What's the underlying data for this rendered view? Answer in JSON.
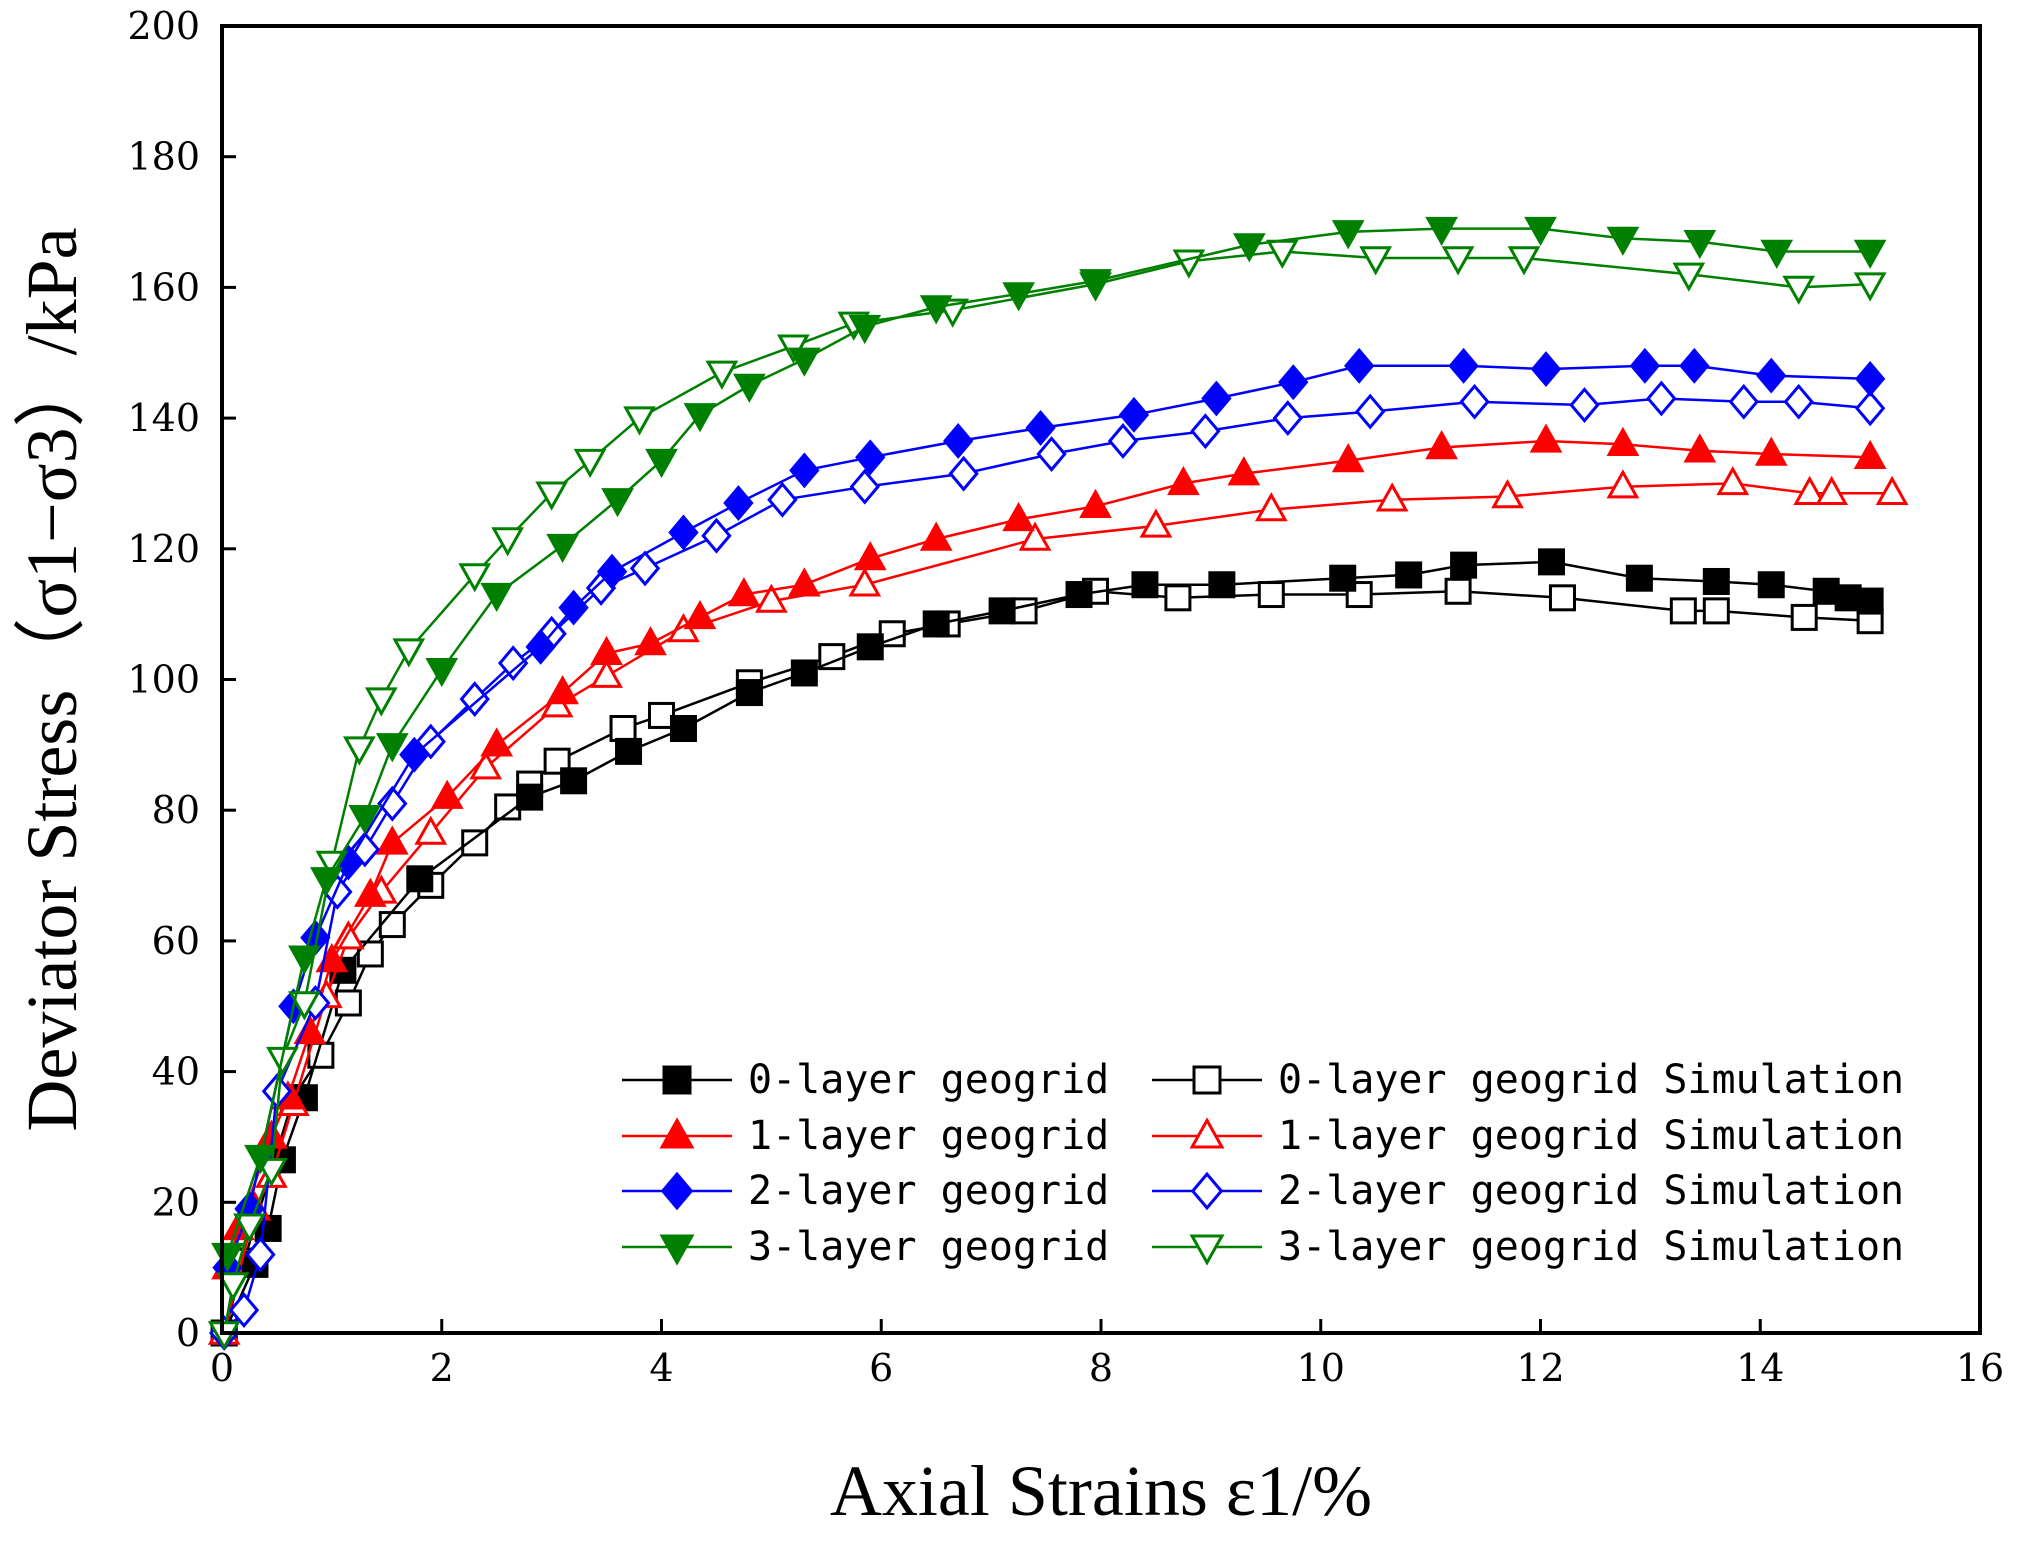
{
  "chart_data": {
    "type": "line",
    "title": "",
    "xlabel": "Axial Strains  ε1/%",
    "ylabel": "Deviator Stress（σ1−σ3）/kPa",
    "xlim": [
      0,
      16
    ],
    "ylim": [
      0,
      200
    ],
    "xticks": [
      0,
      2,
      4,
      6,
      8,
      10,
      12,
      14,
      16
    ],
    "yticks": [
      0,
      20,
      40,
      60,
      80,
      100,
      120,
      140,
      160,
      180,
      200
    ],
    "legend_position": "bottom-right",
    "series": [
      {
        "name": "0-layer geogrid",
        "color": "#000000",
        "marker": "square",
        "filled": true,
        "x": [
          0.02,
          0.3,
          0.42,
          0.55,
          0.75,
          1.1,
          1.8,
          2.8,
          3.2,
          3.7,
          4.2,
          4.8,
          5.3,
          5.9,
          6.5,
          7.1,
          7.8,
          8.4,
          9.1,
          10.2,
          10.8,
          11.3,
          12.1,
          12.9,
          13.6,
          14.1,
          14.6,
          14.8,
          15.0
        ],
        "y": [
          0,
          10.5,
          16,
          26.5,
          36,
          55.5,
          69.5,
          82,
          84.5,
          89,
          92.5,
          98,
          101,
          105,
          108.5,
          110.5,
          113,
          114.5,
          114.5,
          115.5,
          116,
          117.5,
          118,
          115.5,
          115,
          114.5,
          113.5,
          112.5,
          112
        ]
      },
      {
        "name": "0-layer geogrid Simulation",
        "color": "#000000",
        "marker": "square",
        "filled": false,
        "x": [
          0.02,
          0.2,
          0.65,
          0.9,
          1.15,
          1.35,
          1.55,
          1.9,
          2.3,
          2.6,
          2.8,
          3.05,
          3.65,
          4.0,
          4.8,
          5.55,
          6.1,
          6.6,
          7.3,
          7.95,
          8.7,
          9.55,
          10.35,
          11.25,
          12.2,
          13.3,
          13.6,
          14.4,
          15.0
        ],
        "y": [
          0,
          11,
          36,
          42.5,
          50.5,
          58,
          62.5,
          68.5,
          75,
          80.5,
          84,
          87.5,
          92.5,
          94.5,
          99.5,
          103.5,
          107,
          108.5,
          110.5,
          113.5,
          112.5,
          113,
          113,
          113.5,
          112.5,
          110.5,
          110.5,
          109.5,
          109
        ]
      },
      {
        "name": "1-layer geogrid",
        "color": "#ff0000",
        "marker": "triangle-up",
        "filled": true,
        "x": [
          0.05,
          0.15,
          0.45,
          0.6,
          0.8,
          1.0,
          1.35,
          1.55,
          2.05,
          2.5,
          3.1,
          3.5,
          3.9,
          4.35,
          4.75,
          5.3,
          5.9,
          6.5,
          7.25,
          7.95,
          8.75,
          9.3,
          10.25,
          11.1,
          12.05,
          12.75,
          13.45,
          14.1,
          15.0
        ],
        "y": [
          10,
          16,
          30,
          36,
          46,
          57,
          67,
          75,
          82,
          90,
          98,
          104,
          105.5,
          109.5,
          113,
          114.5,
          118.5,
          121.5,
          124.5,
          126.5,
          130,
          131.5,
          133.5,
          135.5,
          136.5,
          136,
          135,
          134.5,
          134
        ]
      },
      {
        "name": "1-layer geogrid Simulation",
        "color": "#ff0000",
        "marker": "triangle-up",
        "filled": false,
        "x": [
          0.02,
          0.3,
          0.45,
          0.65,
          0.95,
          1.15,
          1.45,
          1.9,
          2.4,
          3.05,
          3.5,
          4.2,
          5.0,
          5.85,
          7.4,
          8.5,
          9.55,
          10.65,
          11.7,
          12.75,
          13.75,
          14.45,
          14.65,
          15.2
        ],
        "y": [
          0,
          19,
          24,
          35,
          51.5,
          60.5,
          67.5,
          76.5,
          86.5,
          96,
          100.5,
          107.5,
          112,
          114.5,
          121.5,
          123.5,
          126,
          127.5,
          128,
          129.5,
          130,
          128.5,
          128.5,
          128.5
        ]
      },
      {
        "name": "2-layer geogrid",
        "color": "#0000ff",
        "marker": "diamond",
        "filled": true,
        "x": [
          0.05,
          0.25,
          0.65,
          0.85,
          1.15,
          1.75,
          2.9,
          3.2,
          3.55,
          4.2,
          4.7,
          5.3,
          5.9,
          6.7,
          7.45,
          8.3,
          9.05,
          9.75,
          10.35,
          11.3,
          12.05,
          12.95,
          13.4,
          14.1,
          15.0
        ],
        "y": [
          10,
          19,
          50,
          60.5,
          72,
          88.5,
          105,
          111,
          116.5,
          122.5,
          127,
          132,
          134,
          136.5,
          138.5,
          140.5,
          143,
          145.5,
          148,
          148,
          147.5,
          148,
          148,
          146.5,
          146
        ]
      },
      {
        "name": "2-layer geogrid Simulation",
        "color": "#0000ff",
        "marker": "diamond",
        "filled": false,
        "x": [
          0.02,
          0.2,
          0.35,
          0.5,
          0.85,
          1.05,
          1.3,
          1.55,
          1.9,
          2.3,
          2.65,
          3.0,
          3.45,
          3.85,
          4.5,
          5.1,
          5.85,
          6.75,
          7.55,
          8.2,
          8.95,
          9.7,
          10.45,
          11.4,
          12.4,
          13.1,
          13.85,
          14.35,
          15.0
        ],
        "y": [
          0,
          3.5,
          12,
          37,
          50.5,
          67.5,
          74,
          81,
          90.5,
          97,
          102.5,
          107,
          114,
          117,
          122,
          127.5,
          129.5,
          131.5,
          134.5,
          136.5,
          138,
          140,
          141,
          142.5,
          142,
          143,
          142.5,
          142.5,
          141.5
        ]
      },
      {
        "name": "3-layer geogrid",
        "color": "#008000",
        "marker": "triangle-down",
        "filled": true,
        "x": [
          0.05,
          0.35,
          0.75,
          0.95,
          1.3,
          1.55,
          2.0,
          2.5,
          3.1,
          3.6,
          4.0,
          4.35,
          4.8,
          5.3,
          5.85,
          6.5,
          7.25,
          7.95,
          9.35,
          10.25,
          11.1,
          12.0,
          12.75,
          13.45,
          14.15,
          15.0
        ],
        "y": [
          12,
          27,
          57.5,
          69.5,
          79,
          90,
          101.5,
          113,
          120.5,
          127.5,
          133.5,
          140.5,
          145,
          149,
          154,
          157,
          159,
          161,
          166.5,
          168.5,
          169,
          169,
          167.5,
          167,
          165.5,
          165.5
        ]
      },
      {
        "name": "3-layer geogrid Simulation",
        "color": "#008000",
        "marker": "triangle-down",
        "filled": false,
        "x": [
          0.02,
          0.1,
          0.25,
          0.45,
          0.55,
          0.75,
          1.0,
          1.25,
          1.45,
          1.7,
          2.3,
          2.6,
          3.0,
          3.35,
          3.8,
          4.55,
          5.2,
          5.75,
          6.65,
          7.95,
          8.8,
          9.65,
          10.5,
          11.25,
          11.85,
          13.35,
          14.35,
          15.0
        ],
        "y": [
          0,
          7.5,
          16.5,
          25,
          42,
          50.5,
          72,
          89.5,
          97,
          104.5,
          116,
          121.5,
          128.5,
          133.5,
          140,
          147,
          151,
          154.5,
          156.5,
          160.5,
          164,
          165.5,
          164.5,
          164.5,
          164.5,
          162,
          160,
          160.5
        ]
      }
    ]
  }
}
